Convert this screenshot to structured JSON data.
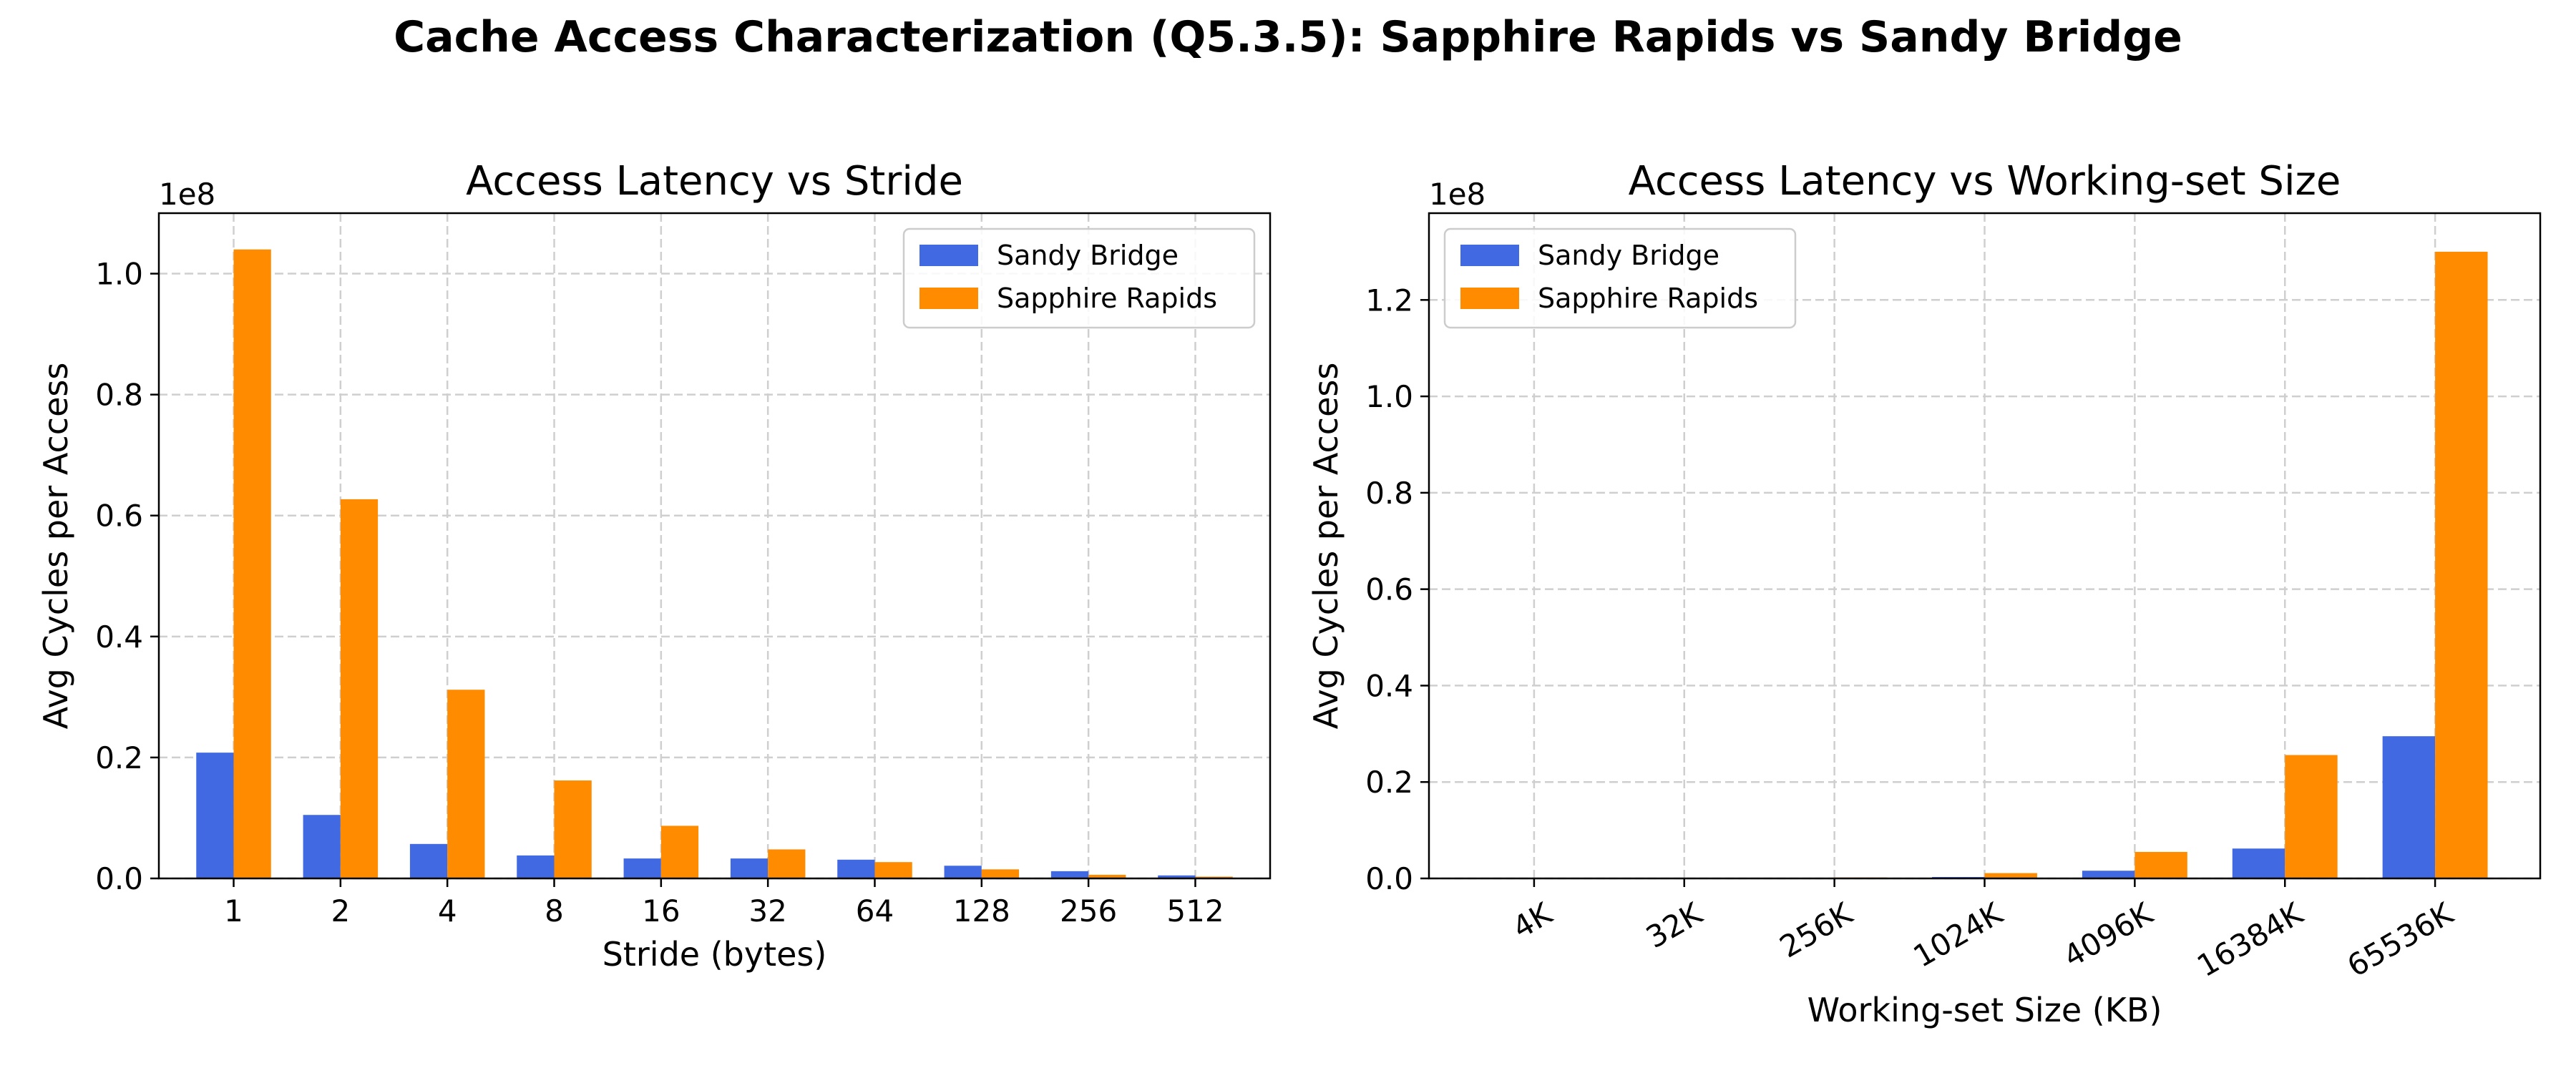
{
  "figure_title": "Cache Access Characterization (Q5.3.5): Sapphire Rapids vs Sandy Bridge",
  "colors": {
    "sandy_bridge": "#4169E1",
    "sapphire_rapids": "#FF8C00"
  },
  "chart_data": [
    {
      "type": "bar",
      "title": "Access Latency vs Stride",
      "xlabel": "Stride (bytes)",
      "ylabel": "Avg Cycles per Access",
      "y_offset_label": "1e8",
      "categories": [
        "1",
        "2",
        "4",
        "8",
        "16",
        "32",
        "64",
        "128",
        "256",
        "512"
      ],
      "ylim": [
        0,
        1.1
      ],
      "yticks": [
        "0.0",
        "0.2",
        "0.4",
        "0.6",
        "0.8",
        "1.0"
      ],
      "grid": true,
      "legend": "top-right",
      "series": [
        {
          "name": "Sandy Bridge",
          "color": "#4169E1",
          "values": [
            0.208,
            0.105,
            0.057,
            0.038,
            0.033,
            0.033,
            0.031,
            0.021,
            0.012,
            0.005
          ]
        },
        {
          "name": "Sapphire Rapids",
          "color": "#FF8C00",
          "values": [
            1.04,
            0.627,
            0.312,
            0.162,
            0.087,
            0.048,
            0.027,
            0.015,
            0.006,
            0.003
          ]
        }
      ]
    },
    {
      "type": "bar",
      "title": "Access Latency vs Working-set Size",
      "xlabel": "Working-set Size (KB)",
      "ylabel": "Avg Cycles per Access",
      "y_offset_label": "1e8",
      "categories": [
        "4K",
        "32K",
        "256K",
        "1024K",
        "4096K",
        "16384K",
        "65536K"
      ],
      "ylim": [
        0,
        1.38
      ],
      "yticks": [
        "0.0",
        "0.2",
        "0.4",
        "0.6",
        "0.8",
        "1.0",
        "1.2"
      ],
      "grid": true,
      "legend": "top-left",
      "series": [
        {
          "name": "Sandy Bridge",
          "color": "#4169E1",
          "values": [
            0.0002,
            0.0003,
            0.0005,
            0.003,
            0.016,
            0.062,
            0.295
          ]
        },
        {
          "name": "Sapphire Rapids",
          "color": "#FF8C00",
          "values": [
            0.0003,
            0.0005,
            0.002,
            0.011,
            0.055,
            0.256,
            1.3
          ]
        }
      ]
    }
  ]
}
